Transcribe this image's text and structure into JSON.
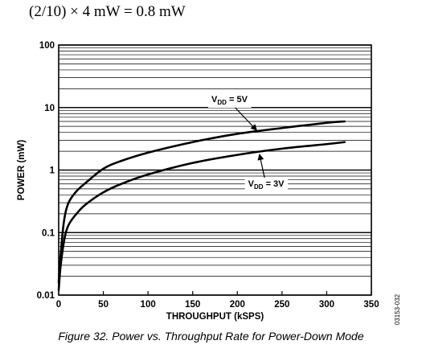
{
  "header": {
    "equation": "(2/10) × 4 mW = 0.8 mW"
  },
  "figure": {
    "caption": "Figure 32. Power vs. Throughput Rate for Power-Down Mode",
    "code": "03153-032"
  },
  "chart_data": {
    "type": "line",
    "xlabel": "THROUGHPUT (kSPS)",
    "ylabel": "POWER (mW)",
    "xlim": [
      0,
      350
    ],
    "ylim": [
      0.01,
      100
    ],
    "y_scale": "log",
    "x_ticks": [
      0,
      50,
      100,
      150,
      200,
      250,
      300,
      350
    ],
    "x_tick_labels": [
      "0",
      "50",
      "100",
      "150",
      "200",
      "250",
      "300",
      "350"
    ],
    "y_ticks": [
      0.01,
      0.1,
      1,
      10,
      100
    ],
    "y_tick_labels": [
      "0.01",
      "0.1",
      "1",
      "10",
      "100"
    ],
    "grid": "horizontal",
    "series": [
      {
        "label_main": "V",
        "label_sub": "DD",
        "label_rest": " = 5V",
        "x": [
          0,
          2,
          5,
          8,
          12,
          20,
          30,
          50,
          70,
          100,
          150,
          200,
          250,
          300,
          320
        ],
        "y": [
          0.016,
          0.04,
          0.12,
          0.22,
          0.32,
          0.46,
          0.62,
          1.05,
          1.4,
          1.9,
          2.8,
          3.8,
          4.7,
          5.7,
          6.0
        ]
      },
      {
        "label_main": "V",
        "label_sub": "DD",
        "label_rest": " = 3V",
        "x": [
          0,
          2,
          5,
          8,
          12,
          20,
          30,
          50,
          70,
          100,
          150,
          200,
          250,
          300,
          320
        ],
        "y": [
          0.012,
          0.028,
          0.06,
          0.1,
          0.14,
          0.2,
          0.28,
          0.44,
          0.6,
          0.85,
          1.3,
          1.75,
          2.2,
          2.6,
          2.8
        ]
      }
    ]
  }
}
